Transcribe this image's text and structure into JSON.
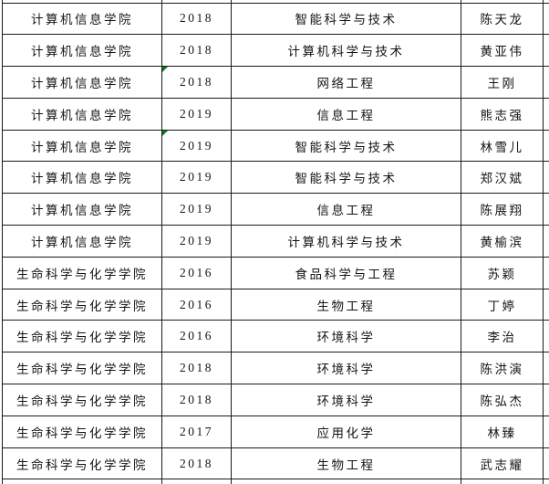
{
  "table": {
    "marker_color": "#0b7d0b",
    "border_color": "#1a1a1a",
    "background_color": "#ffffff",
    "rows": [
      {
        "college": "计算机信息学院",
        "year": "2018",
        "major": "智能科学与技术",
        "name": "陈天龙",
        "has_error_marker": false
      },
      {
        "college": "计算机信息学院",
        "year": "2018",
        "major": "计算机科学与技术",
        "name": "黄亚伟",
        "has_error_marker": false
      },
      {
        "college": "计算机信息学院",
        "year": "2018",
        "major": "网络工程",
        "name": "王刚",
        "has_error_marker": true
      },
      {
        "college": "计算机信息学院",
        "year": "2019",
        "major": "信息工程",
        "name": "熊志强",
        "has_error_marker": false
      },
      {
        "college": "计算机信息学院",
        "year": "2019",
        "major": "智能科学与技术",
        "name": "林雪儿",
        "has_error_marker": true
      },
      {
        "college": "计算机信息学院",
        "year": "2019",
        "major": "智能科学与技术",
        "name": "郑汉斌",
        "has_error_marker": false
      },
      {
        "college": "计算机信息学院",
        "year": "2019",
        "major": "信息工程",
        "name": "陈展翔",
        "has_error_marker": false
      },
      {
        "college": "计算机信息学院",
        "year": "2019",
        "major": "计算机科学与技术",
        "name": "黄榆滨",
        "has_error_marker": false
      },
      {
        "college": "生命科学与化学学院",
        "year": "2016",
        "major": "食品科学与工程",
        "name": "苏颖",
        "has_error_marker": false
      },
      {
        "college": "生命科学与化学学院",
        "year": "2016",
        "major": "生物工程",
        "name": "丁婷",
        "has_error_marker": false
      },
      {
        "college": "生命科学与化学学院",
        "year": "2016",
        "major": "环境科学",
        "name": "李治",
        "has_error_marker": false
      },
      {
        "college": "生命科学与化学学院",
        "year": "2018",
        "major": "环境科学",
        "name": "陈洪演",
        "has_error_marker": false
      },
      {
        "college": "生命科学与化学学院",
        "year": "2018",
        "major": "环境科学",
        "name": "陈弘杰",
        "has_error_marker": false
      },
      {
        "college": "生命科学与化学学院",
        "year": "2017",
        "major": "应用化学",
        "name": "林臻",
        "has_error_marker": false
      },
      {
        "college": "生命科学与化学学院",
        "year": "2018",
        "major": "生物工程",
        "name": "武志耀",
        "has_error_marker": false
      }
    ]
  }
}
